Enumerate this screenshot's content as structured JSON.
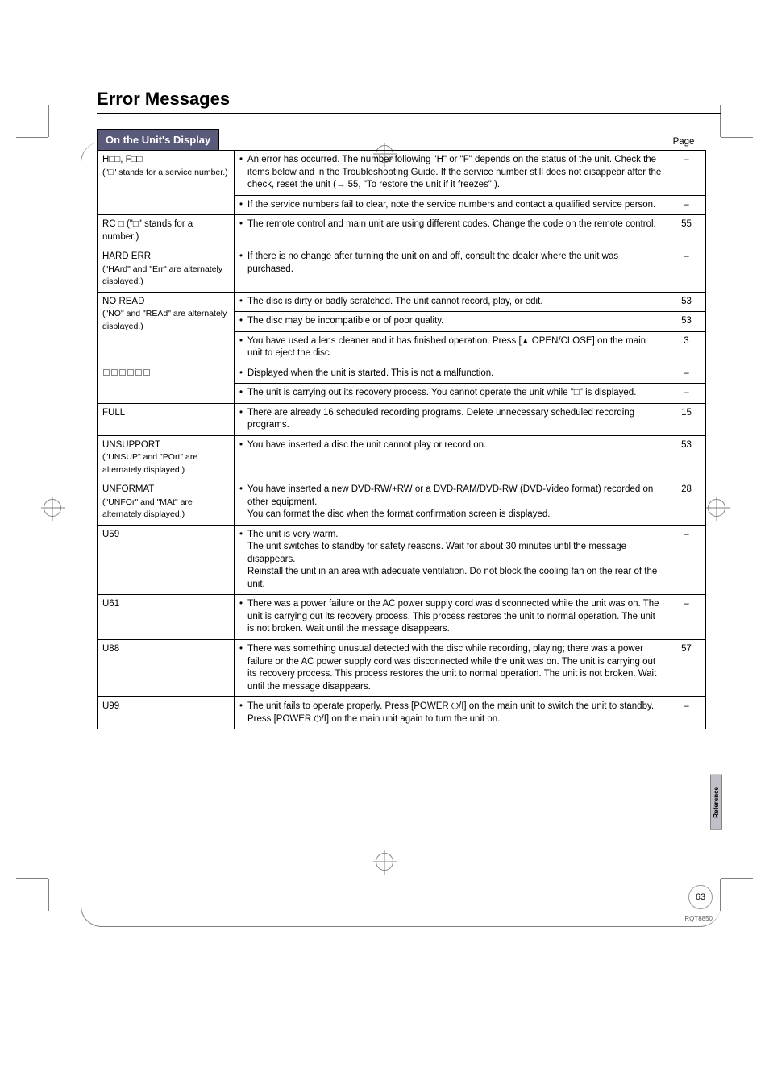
{
  "doc": {
    "title": "Error Messages",
    "section_header": "On the Unit's Display",
    "page_col_label": "Page",
    "side_tab": "Reference",
    "page_number": "63",
    "doc_code": "RQT8850"
  },
  "rows": [
    {
      "code_html": "H□□, F□□<br><span class='nowrap-note'>(\"□\" stands for a service number.)</span>",
      "items": [
        {
          "text": "An error has occurred. The number following \"H\" or \"F\" depends on the status of the unit. Check the items below and in the Troubleshooting Guide. If the service number still does not disappear after the check, reset the unit (→ 55, \"To restore the unit if it freezes\" ).",
          "page": "–"
        },
        {
          "text": "If the service numbers fail to clear, note the service numbers and contact a qualified service person.",
          "page": "–"
        }
      ]
    },
    {
      "code_html": "RC □ (\"□\" stands for a number.)",
      "items": [
        {
          "text": "The remote control and main unit are using different codes. Change the code on the remote control.",
          "page": "55"
        }
      ]
    },
    {
      "code_html": "HARD ERR<br><span class='nowrap-note'>(\"HArd\" and \"Err\" are alternately displayed.)</span>",
      "items": [
        {
          "text": "If there is no change after turning the unit on and off, consult the dealer where the unit was purchased.",
          "page": "–"
        }
      ]
    },
    {
      "code_html": "NO READ<br><span class='nowrap-note'>(\"NO\" and \"REAd\" are alternately displayed.)</span>",
      "items": [
        {
          "text": "The disc is dirty or badly scratched. The unit cannot record, play, or edit.",
          "page": "53"
        },
        {
          "text": "The disc may be incompatible or of poor quality.",
          "page": "53"
        },
        {
          "text": "You have used a lens cleaner and it has finished operation. Press [<span class='eject-sym'>▲</span> OPEN/CLOSE] on the main unit to eject the disc.",
          "page": "3"
        }
      ]
    },
    {
      "code_html": "<span class='box'></span><span class='box'></span><span class='box'></span><span class='box'></span><span class='box'></span><span class='box'></span>",
      "items": [
        {
          "text": "Displayed when the unit is started. This is not a malfunction.",
          "page": "–"
        },
        {
          "text": "The unit is carrying out its recovery process. You cannot operate the unit while \"□\" is displayed.",
          "page": "–"
        }
      ]
    },
    {
      "code_html": "FULL",
      "items": [
        {
          "text": "There are already 16 scheduled recording programs. Delete unnecessary scheduled recording programs.",
          "page": "15"
        }
      ]
    },
    {
      "code_html": "UNSUPPORT<br><span class='nowrap-note'>(\"UNSUP\" and \"POrt\" are alternately displayed.)</span>",
      "items": [
        {
          "text": "You have inserted a disc the unit cannot play or record on.",
          "page": "53"
        }
      ]
    },
    {
      "code_html": "UNFORMAT<br><span class='nowrap-note'>(\"UNFOr\" and \"MAt\" are alternately displayed.)</span>",
      "items": [
        {
          "text": "You have inserted a new DVD-RW/+RW or a DVD-RAM/DVD-RW (DVD-Video format) recorded on other equipment.<br>You can format the disc when the format confirmation screen is displayed.",
          "page": "28"
        }
      ]
    },
    {
      "code_html": "U59",
      "items": [
        {
          "text": "The unit is very warm.<br>The unit switches to standby for safety reasons. Wait for about 30 minutes until the message disappears.<br>Reinstall the unit in an area with adequate ventilation. Do not block the cooling fan on the rear of the unit.",
          "page": "–"
        }
      ]
    },
    {
      "code_html": "U61",
      "items": [
        {
          "text": "There was a power failure or the AC power supply cord was disconnected while the unit was on. The unit is carrying out its recovery process. This process restores the unit to normal operation. The unit is not broken. Wait until the message disappears.",
          "page": "–"
        }
      ]
    },
    {
      "code_html": "U88",
      "items": [
        {
          "text": "There was something unusual detected with the disc while recording, playing; there was a power failure or the AC power supply cord was disconnected while the unit was on. The unit is carrying out its recovery process. This process restores the unit to normal operation. The unit is not broken. Wait until the message disappears.",
          "page": "57"
        }
      ]
    },
    {
      "code_html": "U99",
      "items": [
        {
          "text": "The unit fails to operate properly. Press [POWER <span class='pwr'>⏻</span>/I] on the main unit to switch the unit to standby. Press [POWER <span class='pwr'>⏻</span>/I] on the main unit again to turn the unit on.",
          "page": "–"
        }
      ]
    }
  ]
}
